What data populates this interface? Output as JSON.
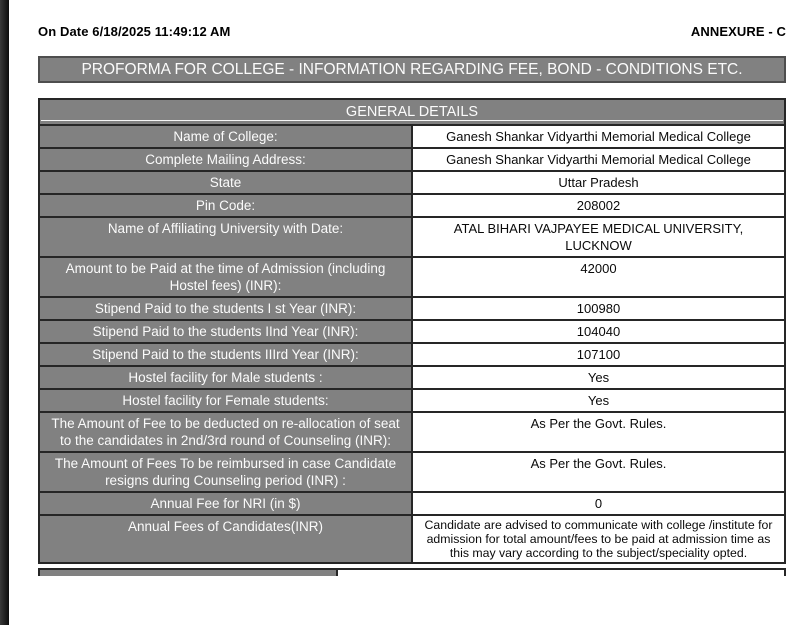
{
  "header": {
    "date_label": "On Date 6/18/2025 11:49:12 AM",
    "annexure": "ANNEXURE - C"
  },
  "banner": {
    "title": "PROFORMA FOR COLLEGE - INFORMATION REGARDING FEE, BOND - CONDITIONS ETC."
  },
  "table": {
    "section_title": "GENERAL DETAILS",
    "rows": [
      {
        "label": "Name of College:",
        "value": "Ganesh Shankar Vidyarthi Memorial Medical College"
      },
      {
        "label": "Complete Mailing Address:",
        "value": "Ganesh Shankar Vidyarthi Memorial Medical College"
      },
      {
        "label": "State",
        "value": "Uttar Pradesh"
      },
      {
        "label": "Pin Code:",
        "value": "208002"
      },
      {
        "label": "Name of Affiliating University with Date:",
        "value": "ATAL BIHARI VAJPAYEE MEDICAL UNIVERSITY, LUCKNOW"
      },
      {
        "label": "Amount to be Paid at the time of Admission (including Hostel fees) (INR):",
        "value": "42000"
      },
      {
        "label": "Stipend Paid to the students I st Year (INR):",
        "value": "100980"
      },
      {
        "label": "Stipend Paid to the students IInd Year (INR):",
        "value": "104040"
      },
      {
        "label": "Stipend Paid to the students IIIrd Year (INR):",
        "value": "107100"
      },
      {
        "label": "Hostel facility for Male students :",
        "value": "Yes"
      },
      {
        "label": "Hostel facility for Female students:",
        "value": "Yes"
      },
      {
        "label": "The Amount of Fee to be deducted on re-allocation of seat to the candidates in 2nd/3rd round of Counseling (INR):",
        "value": "As Per the Govt. Rules."
      },
      {
        "label": "The Amount of Fees To be reimbursed in case Candidate resigns during Counseling period (INR) :",
        "value": "As Per the Govt. Rules."
      },
      {
        "label": "Annual Fee for NRI (in $)",
        "value": "0"
      },
      {
        "label": "Annual Fees of Candidates(INR)",
        "value": "Candidate are advised to communicate with college /institute for admission for total amount/fees to be paid at admission time as this may vary according to the subject/speciality opted."
      }
    ]
  },
  "colors": {
    "cell_gray": "#818181",
    "border_dark": "#262626",
    "banner_border": "#4e4e4e",
    "text_white": "#fbfbfb"
  }
}
